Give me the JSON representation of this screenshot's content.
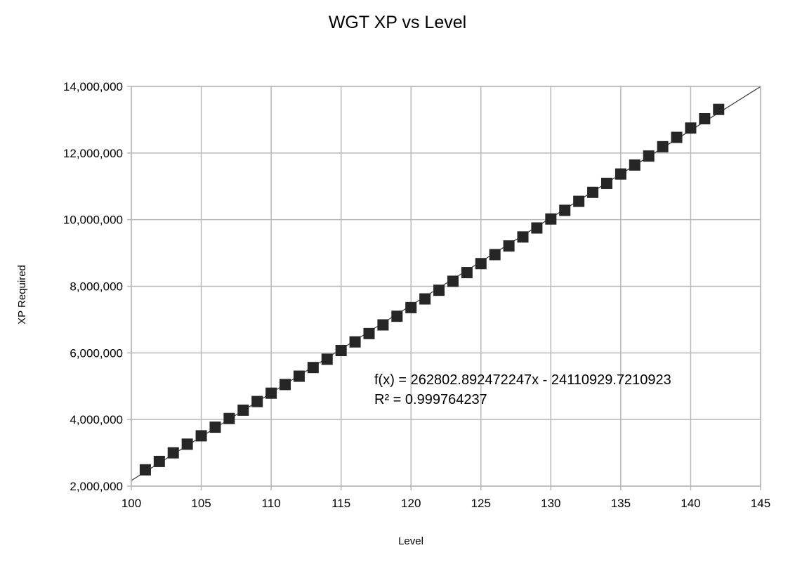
{
  "chart_data": {
    "type": "scatter",
    "title": "WGT XP vs Level",
    "xlabel": "Level",
    "ylabel": "XP Required",
    "xlim": [
      100,
      145
    ],
    "ylim": [
      2000000,
      14000000
    ],
    "x_ticks": [
      100,
      105,
      110,
      115,
      120,
      125,
      130,
      135,
      140,
      145
    ],
    "y_ticks": [
      2000000,
      4000000,
      6000000,
      8000000,
      10000000,
      12000000,
      14000000
    ],
    "x_tick_labels": [
      "100",
      "105",
      "110",
      "115",
      "120",
      "125",
      "130",
      "135",
      "140",
      "145"
    ],
    "y_tick_labels": [
      "2,000,000",
      "4,000,000",
      "6,000,000",
      "8,000,000",
      "10,000,000",
      "12,000,000",
      "14,000,000"
    ],
    "grid": true,
    "legend": "none",
    "marker_color": "#262626",
    "grid_color": "#b8b8b8",
    "series": [
      {
        "x": [
          101,
          102,
          103,
          104,
          105,
          106,
          107,
          108,
          109,
          110,
          111,
          112,
          113,
          114,
          115,
          116,
          117,
          118,
          119,
          120,
          121,
          122,
          123,
          124,
          125,
          126,
          127,
          128,
          129,
          130,
          131,
          132,
          133,
          134,
          135,
          136,
          137,
          138,
          139,
          140,
          141,
          142
        ],
        "y": [
          2490000,
          2740000,
          3000000,
          3260000,
          3510000,
          3770000,
          4030000,
          4280000,
          4540000,
          4790000,
          5050000,
          5300000,
          5560000,
          5810000,
          6070000,
          6330000,
          6580000,
          6840000,
          7100000,
          7360000,
          7620000,
          7880000,
          8150000,
          8410000,
          8680000,
          8950000,
          9210000,
          9480000,
          9750000,
          10020000,
          10280000,
          10550000,
          10820000,
          11090000,
          11370000,
          11640000,
          11910000,
          12190000,
          12470000,
          12750000,
          13030000,
          13310000
        ]
      }
    ],
    "trendline": {
      "slope": 262802.892472247,
      "intercept": -24110929.7210923,
      "equation_label": "f(x) = 262802.892472247x - 24110929.7210923",
      "r2_label": "R² = 0.999764237"
    }
  }
}
